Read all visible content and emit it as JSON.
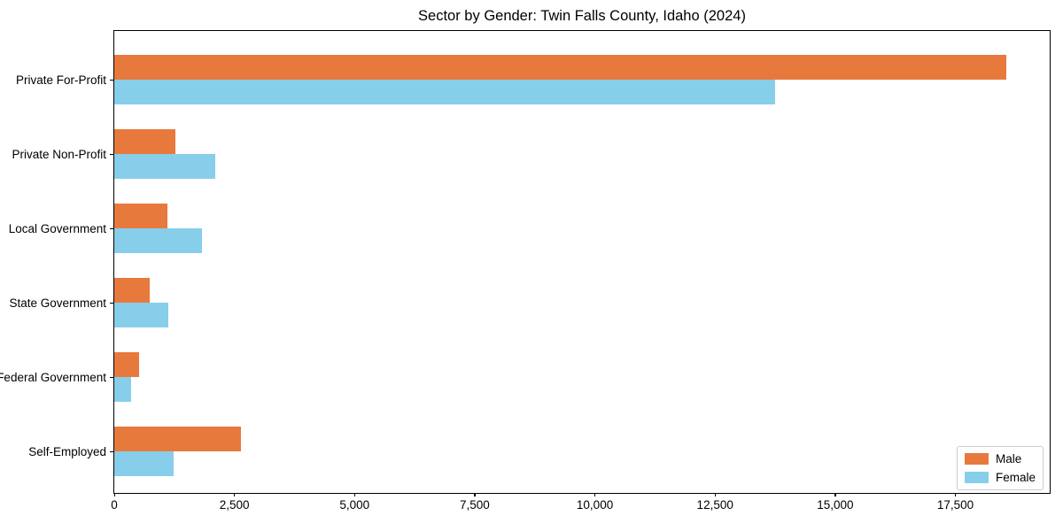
{
  "figure": {
    "background": "#ffffff",
    "text_color": "#000000",
    "spine_color": "#000000",
    "legend_border_color": "#cccccc"
  },
  "chart_data": {
    "type": "bar",
    "orientation": "horizontal",
    "grouped": true,
    "title": "Sector by Gender: Twin Falls County, Idaho (2024)",
    "xlabel": "",
    "ylabel": "",
    "grid": false,
    "categories": [
      "Private For-Profit",
      "Private Non-Profit",
      "Local Government",
      "State Government",
      "Federal Government",
      "Self-Employed"
    ],
    "series": [
      {
        "name": "Male",
        "color": "#e8793d",
        "values": [
          18550,
          1270,
          1100,
          740,
          510,
          2630
        ]
      },
      {
        "name": "Female",
        "color": "#87ceeb",
        "values": [
          13750,
          2100,
          1820,
          1120,
          350,
          1240
        ]
      }
    ],
    "xlim": [
      0,
      19500
    ],
    "xticks": [
      0,
      2500,
      5000,
      7500,
      10000,
      12500,
      15000,
      17500
    ],
    "xtick_labels": [
      "0",
      "2,500",
      "5,000",
      "7,500",
      "10,000",
      "12,500",
      "15,000",
      "17,500"
    ],
    "legend": {
      "position": "lower right",
      "entries": [
        "Male",
        "Female"
      ]
    }
  }
}
